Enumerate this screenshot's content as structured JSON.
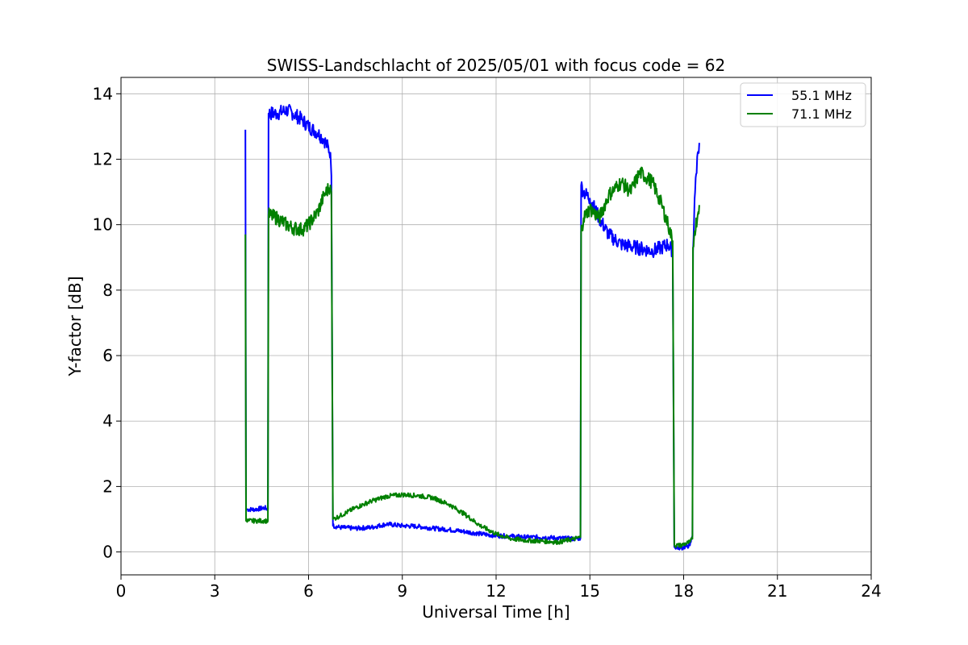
{
  "chart_data": {
    "type": "line",
    "title": "SWISS-Landschlacht of 2025/05/01 with focus code = 62",
    "xlabel": "Universal Time [h]",
    "ylabel": "Y-factor [dB]",
    "xlim": [
      0,
      24
    ],
    "ylim": [
      -0.7,
      14.5
    ],
    "xticks": [
      0,
      3,
      6,
      9,
      12,
      15,
      18,
      21,
      24
    ],
    "yticks": [
      0,
      2,
      4,
      6,
      8,
      10,
      12,
      14
    ],
    "grid": true,
    "legend_position": "top-right",
    "series": [
      {
        "name": "55.1 MHz",
        "color": "#0000ff",
        "x": [
          3.98,
          4.0,
          4.02,
          4.3,
          4.6,
          4.7,
          4.72,
          5.0,
          5.3,
          5.5,
          5.8,
          6.0,
          6.3,
          6.5,
          6.7,
          6.73,
          6.78,
          7.0,
          7.5,
          8.0,
          8.5,
          9.0,
          9.5,
          10.0,
          10.5,
          11.0,
          11.5,
          12.0,
          12.5,
          13.0,
          13.5,
          14.0,
          14.5,
          14.7,
          14.72,
          14.8,
          15.0,
          15.3,
          15.6,
          16.0,
          16.5,
          17.0,
          17.3,
          17.5,
          17.65,
          17.7,
          17.9,
          18.2,
          18.28,
          18.3,
          18.35,
          18.45,
          18.5
        ],
        "y": [
          12.9,
          1.3,
          1.3,
          1.3,
          1.35,
          1.3,
          13.4,
          13.4,
          13.5,
          13.4,
          13.2,
          13.0,
          12.8,
          12.6,
          12.2,
          11.5,
          0.8,
          0.75,
          0.72,
          0.75,
          0.85,
          0.8,
          0.78,
          0.72,
          0.68,
          0.62,
          0.55,
          0.5,
          0.48,
          0.45,
          0.45,
          0.42,
          0.4,
          0.42,
          11.2,
          11.0,
          10.8,
          10.2,
          9.7,
          9.4,
          9.3,
          9.2,
          9.3,
          9.4,
          9.2,
          0.15,
          0.12,
          0.2,
          0.5,
          9.2,
          10.8,
          12.2,
          12.5
        ]
      },
      {
        "name": "71.1 MHz",
        "color": "#008000",
        "x": [
          3.98,
          4.0,
          4.02,
          4.3,
          4.6,
          4.7,
          4.72,
          5.0,
          5.3,
          5.5,
          5.8,
          6.0,
          6.3,
          6.5,
          6.7,
          6.73,
          6.78,
          7.0,
          7.5,
          8.0,
          8.5,
          9.0,
          9.5,
          10.0,
          10.5,
          11.0,
          11.5,
          12.0,
          12.5,
          13.0,
          13.5,
          14.0,
          14.5,
          14.7,
          14.72,
          14.8,
          15.0,
          15.3,
          15.6,
          16.0,
          16.3,
          16.6,
          17.0,
          17.3,
          17.5,
          17.65,
          17.7,
          17.9,
          18.2,
          18.28,
          18.3,
          18.35,
          18.45,
          18.5
        ],
        "y": [
          9.7,
          0.95,
          0.95,
          0.95,
          0.95,
          0.95,
          10.3,
          10.2,
          10.0,
          9.9,
          9.85,
          10.0,
          10.4,
          10.9,
          11.2,
          11.0,
          1.0,
          1.1,
          1.35,
          1.55,
          1.7,
          1.75,
          1.72,
          1.65,
          1.45,
          1.15,
          0.8,
          0.55,
          0.4,
          0.35,
          0.33,
          0.3,
          0.4,
          0.45,
          9.8,
          10.2,
          10.5,
          10.2,
          10.9,
          11.3,
          11.0,
          11.6,
          11.3,
          10.6,
          10.0,
          9.5,
          0.2,
          0.2,
          0.3,
          0.4,
          9.3,
          9.8,
          10.3,
          10.6
        ]
      }
    ]
  }
}
